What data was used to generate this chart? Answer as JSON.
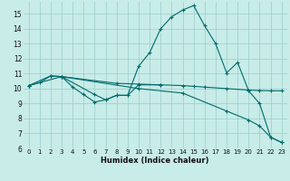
{
  "xlabel": "Humidex (Indice chaleur)",
  "background_color": "#c8ece8",
  "grid_color": "#99cccc",
  "line_color": "#006b6b",
  "xlim": [
    -0.5,
    23.5
  ],
  "ylim": [
    6,
    15.8
  ],
  "xticks": [
    0,
    1,
    2,
    3,
    4,
    5,
    6,
    7,
    8,
    9,
    10,
    11,
    12,
    13,
    14,
    15,
    16,
    17,
    18,
    19,
    20,
    21,
    22,
    23
  ],
  "yticks": [
    6,
    7,
    8,
    9,
    10,
    11,
    12,
    13,
    14,
    15
  ],
  "series": [
    {
      "x": [
        0,
        1,
        2,
        3,
        4,
        5,
        6,
        7,
        8,
        9,
        10,
        11,
        12,
        13,
        14,
        15,
        16,
        17,
        18,
        19,
        20,
        21,
        22,
        23
      ],
      "y": [
        10.2,
        10.4,
        10.85,
        10.8,
        10.1,
        9.6,
        9.1,
        9.25,
        9.55,
        9.55,
        11.5,
        12.4,
        14.0,
        14.8,
        15.25,
        15.55,
        14.2,
        13.0,
        11.05,
        11.75,
        9.85,
        9.0,
        6.75,
        6.4
      ]
    },
    {
      "x": [
        0,
        2,
        3,
        8,
        10,
        12,
        14,
        15,
        16,
        18,
        20,
        21,
        22,
        23
      ],
      "y": [
        10.2,
        10.85,
        10.8,
        10.35,
        10.3,
        10.25,
        10.2,
        10.15,
        10.1,
        10.0,
        9.9,
        9.87,
        9.85,
        9.85
      ]
    },
    {
      "x": [
        0,
        3,
        10,
        14,
        18,
        20,
        21,
        22,
        23
      ],
      "y": [
        10.2,
        10.8,
        10.0,
        9.7,
        8.5,
        7.9,
        7.5,
        6.75,
        6.4
      ]
    },
    {
      "x": [
        3,
        6,
        7,
        8,
        9,
        10,
        12
      ],
      "y": [
        10.8,
        9.6,
        9.25,
        9.55,
        9.55,
        10.25,
        10.25
      ]
    }
  ]
}
